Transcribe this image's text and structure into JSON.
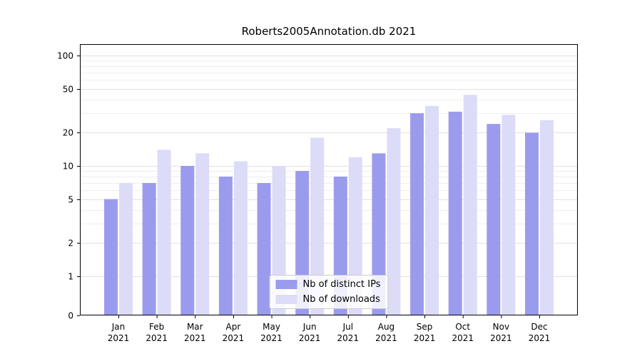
{
  "chart_data": {
    "type": "bar",
    "title": "Roberts2005Annotation.db 2021",
    "categories": [
      "Jan",
      "Feb",
      "Mar",
      "Apr",
      "May",
      "Jun",
      "Jul",
      "Aug",
      "Sep",
      "Oct",
      "Nov",
      "Dec"
    ],
    "year_label": "2021",
    "series": [
      {
        "name": "Nb of distinct IPs",
        "color": "#9b9bee",
        "values": [
          5,
          7,
          10,
          8,
          7,
          9,
          8,
          13,
          30,
          31,
          24,
          20
        ]
      },
      {
        "name": "Nb of downloads",
        "color": "#dcdcf8",
        "values": [
          7,
          14,
          13,
          11,
          10,
          18,
          12,
          22,
          35,
          44,
          29,
          26
        ]
      }
    ],
    "yscale": "symlog",
    "yticks": [
      0,
      1,
      2,
      5,
      10,
      20,
      50,
      100
    ],
    "minor_yticks": [
      3,
      4,
      6,
      7,
      8,
      9,
      30,
      40,
      60,
      70,
      80,
      90
    ],
    "ylim": [
      0,
      150
    ],
    "xlabel": "",
    "ylabel": "",
    "grid": true,
    "grid_major_color": "#e2e2e2",
    "grid_minor_color": "#eeeeee",
    "legend_position": "lower center"
  }
}
